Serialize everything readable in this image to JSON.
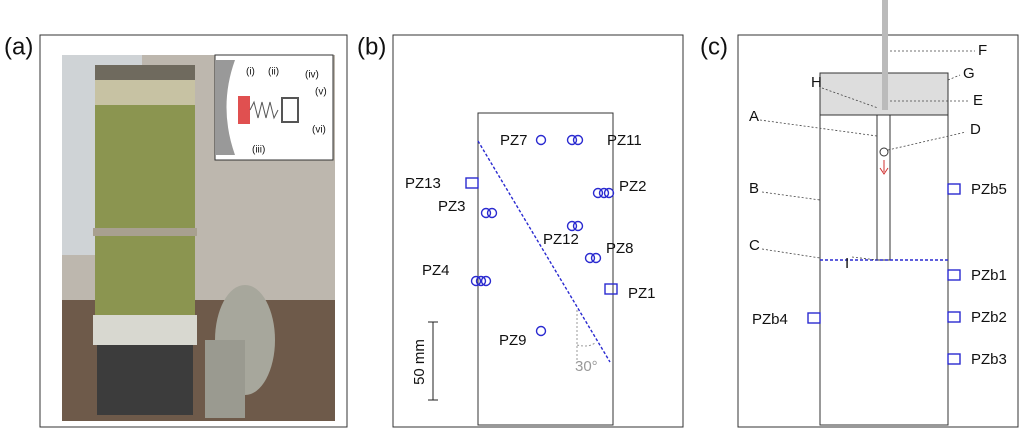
{
  "panels": [
    {
      "label": "(a)",
      "inset_labels": [
        "(i)",
        "(ii)",
        "(iii)",
        "(iv)",
        "(v)",
        "(vi)"
      ]
    },
    {
      "label": "(b)",
      "sensors": [
        "PZ7",
        "PZ11",
        "PZ13",
        "PZ2",
        "PZ3",
        "PZ12",
        "PZ8",
        "PZ4",
        "PZ1",
        "PZ9"
      ],
      "scale": "50 mm",
      "angle": "30°"
    },
    {
      "label": "(c)",
      "letters": [
        "F",
        "G",
        "H",
        "E",
        "A",
        "D",
        "B",
        "C",
        "I"
      ],
      "sensors": [
        "PZb5",
        "PZb1",
        "PZb2",
        "PZb3",
        "PZb4"
      ]
    }
  ]
}
